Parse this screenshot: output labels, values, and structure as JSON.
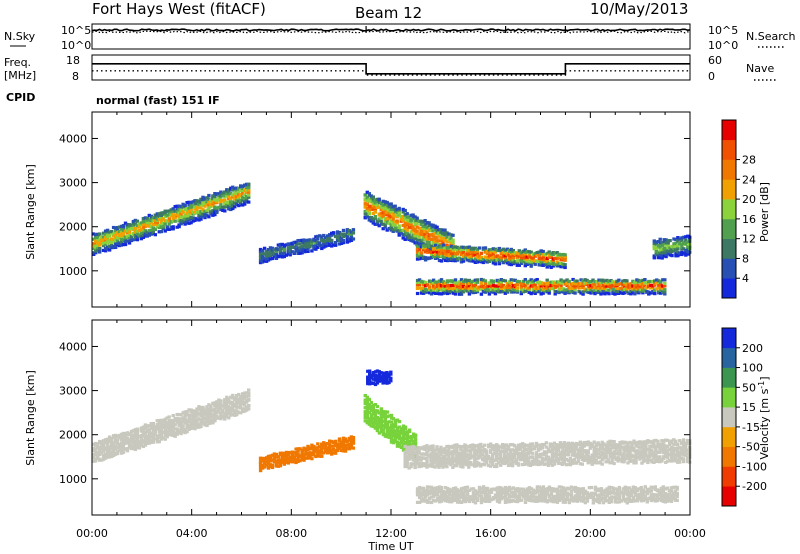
{
  "header": {
    "station": "Fort Hays West (fitACF)",
    "beam": "Beam 12",
    "date": "10/May/2013"
  },
  "panel_labels": {
    "nsky": "N.Sky",
    "nsearch": "N.Search",
    "freq_line1": "Freq.",
    "freq_line2": "[MHz]",
    "nave": "Nave",
    "cpid": "CPID",
    "cpid_value": "normal (fast) 151 IF",
    "noise_left_ticks": [
      "10^5",
      "10^0"
    ],
    "noise_right_ticks": [
      "10^5",
      "10^0"
    ],
    "freq_left_ticks": [
      "18",
      "8"
    ],
    "nave_right_ticks": [
      "60",
      "0"
    ]
  },
  "colors": {
    "power": [
      "#1428dc",
      "#2850b4",
      "#3c7864",
      "#50a050",
      "#8cd23c",
      "#f0a000",
      "#f07800",
      "#f05000",
      "#e60000"
    ],
    "velocity": [
      "#e60000",
      "#f03c00",
      "#f07800",
      "#f0a000",
      "#c8c8be",
      "#78d23c",
      "#3c9650",
      "#2864a0",
      "#1428dc"
    ],
    "ground_scatter": "#c8c8be"
  },
  "chart_data": [
    {
      "type": "heatmap",
      "name": "power",
      "xlabel": "",
      "ylabel": "Slant Range [km]",
      "x_ticks": [
        "00:00",
        "04:00",
        "08:00",
        "12:00",
        "16:00",
        "20:00",
        "00:00"
      ],
      "y_ticks": [
        1000,
        2000,
        3000,
        4000
      ],
      "xlim_hours": [
        0,
        24
      ],
      "ylim_km": [
        180,
        4600
      ],
      "colorbar_label": "Power [dB]",
      "colorbar_ticks": [
        4,
        8,
        12,
        16,
        20,
        24,
        28
      ],
      "colorbar_range": [
        0,
        32
      ],
      "scatter_regions": [
        {
          "t0": 0.0,
          "t1": 6.3,
          "r_start": 1600,
          "r_end": 2800,
          "width": 480,
          "peak_db": 22
        },
        {
          "t0": 6.7,
          "t1": 10.5,
          "r_start": 1350,
          "r_end": 1850,
          "width": 300,
          "peak_db": 10
        },
        {
          "t0": 10.9,
          "t1": 14.5,
          "r_start": 2500,
          "r_end": 1500,
          "width": 650,
          "peak_db": 26
        },
        {
          "t0": 13.0,
          "t1": 19.0,
          "r_start": 1450,
          "r_end": 1250,
          "width": 350,
          "peak_db": 29
        },
        {
          "t0": 13.0,
          "t1": 23.0,
          "r_start": 650,
          "r_end": 650,
          "width": 320,
          "peak_db": 29
        },
        {
          "t0": 22.5,
          "t1": 24.0,
          "r_start": 1500,
          "r_end": 1600,
          "width": 420,
          "peak_db": 16
        }
      ]
    },
    {
      "type": "heatmap",
      "name": "velocity",
      "xlabel": "Time UT",
      "ylabel": "Slant Range [km]",
      "x_ticks": [
        "00:00",
        "04:00",
        "08:00",
        "12:00",
        "16:00",
        "20:00",
        "00:00"
      ],
      "y_ticks": [
        1000,
        2000,
        3000,
        4000
      ],
      "xlim_hours": [
        0,
        24
      ],
      "ylim_km": [
        180,
        4600
      ],
      "colorbar_label": "Velocity [m s^-1]",
      "colorbar_ticks": [
        "200",
        "100",
        "50",
        "15",
        "-15",
        "-50",
        "-100",
        "-200"
      ],
      "colorbar_range": [
        -250,
        250
      ],
      "scatter_regions": [
        {
          "t0": 0.0,
          "t1": 6.3,
          "r_start": 1600,
          "r_end": 2800,
          "width": 480,
          "velocity": 0
        },
        {
          "t0": 6.7,
          "t1": 10.5,
          "r_start": 1350,
          "r_end": 1850,
          "width": 300,
          "velocity": -60
        },
        {
          "t0": 10.9,
          "t1": 13.0,
          "r_start": 2600,
          "r_end": 1700,
          "width": 600,
          "velocity": 30
        },
        {
          "t0": 11.0,
          "t1": 12.0,
          "r_start": 3300,
          "r_end": 3300,
          "width": 300,
          "velocity": 220
        },
        {
          "t0": 12.5,
          "t1": 24.0,
          "r_start": 1500,
          "r_end": 1650,
          "width": 500,
          "velocity": 0
        },
        {
          "t0": 13.0,
          "t1": 23.5,
          "r_start": 650,
          "r_end": 650,
          "width": 350,
          "velocity": 0
        }
      ]
    },
    {
      "type": "line",
      "name": "noise",
      "series": [
        {
          "name": "N.Sky",
          "style": "solid",
          "level_log10": 3.8
        },
        {
          "name": "N.Search",
          "style": "dotted",
          "level_log10": 3.4
        }
      ],
      "ylim_log10": [
        0,
        5
      ]
    },
    {
      "type": "line",
      "name": "frequency_nave",
      "series": [
        {
          "name": "Freq. [MHz]",
          "style": "solid",
          "x_hours": [
            0,
            11,
            11,
            19,
            19,
            24
          ],
          "values": [
            14.5,
            14.5,
            10.5,
            10.5,
            14.5,
            14.5
          ]
        },
        {
          "name": "Nave",
          "style": "dotted",
          "x_hours": [
            0,
            11,
            11,
            19,
            19,
            24
          ],
          "values": [
            22,
            22,
            12,
            12,
            22,
            22
          ]
        }
      ],
      "freq_ylim": [
        8,
        18
      ],
      "nave_ylim": [
        0,
        60
      ]
    }
  ]
}
